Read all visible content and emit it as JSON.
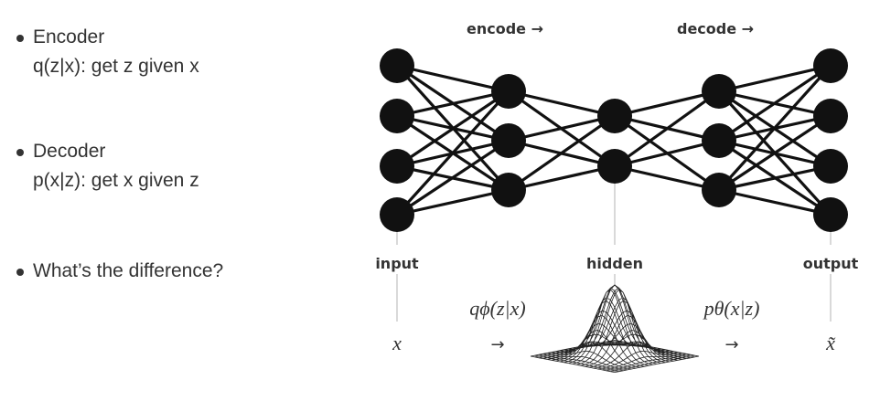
{
  "bullets": {
    "encoder": {
      "title": "Encoder",
      "detail": "q(z|x): get z given x"
    },
    "decoder": {
      "title": "Decoder",
      "detail": "p(x|z): get x given z"
    },
    "question": {
      "title": "What’s the difference?"
    }
  },
  "diagram": {
    "encode_label": "encode →",
    "decode_label": "decode →",
    "input_label": "input",
    "hidden_label": "hidden",
    "output_label": "output",
    "x_symbol": "x",
    "encoder_dist": "qϕ(z|x)",
    "decoder_dist": "pθ(x|z)",
    "arrow": "→",
    "xtilde_symbol": "x̃",
    "layers": [
      4,
      3,
      2,
      3,
      4
    ],
    "node_color": "#111111",
    "edge_color": "#111111"
  }
}
